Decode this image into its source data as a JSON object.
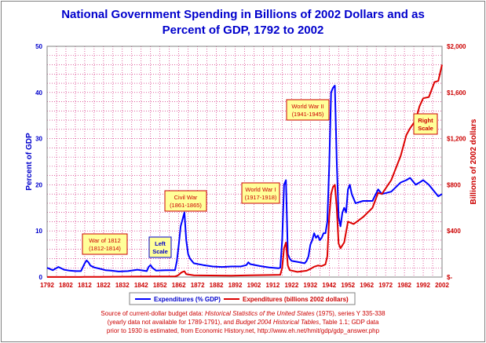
{
  "chart_data": {
    "type": "line",
    "title": "National Government Spending in Billions of 2002 Dollars and as Percent of GDP, 1792 to 2002",
    "title_line1": "National Government Spending in Billions of 2002 Dollars and as",
    "title_line2": "Percent of GDP, 1792 to 2002",
    "ylabel_left": "Percent of GDP",
    "ylabel_right": "Billions of 2002 dollars",
    "xlim": [
      1792,
      2002
    ],
    "ylim_left": [
      0,
      50
    ],
    "ylim_right": [
      0,
      2000
    ],
    "x_ticks": [
      "1792",
      "1802",
      "1812",
      "1822",
      "1832",
      "1842",
      "1852",
      "1862",
      "1872",
      "1882",
      "1892",
      "1902",
      "1912",
      "1922",
      "1932",
      "1942",
      "1952",
      "1962",
      "1972",
      "1982",
      "1992",
      "2002"
    ],
    "y_ticks_left": [
      "0",
      "10",
      "20",
      "30",
      "40",
      "50"
    ],
    "y_ticks_right": [
      "$-",
      "$400",
      "$800",
      "$1,200",
      "$1,600",
      "$2,000"
    ],
    "grid": true,
    "legend_position": "bottom",
    "colors": {
      "left_series": "#0000ff",
      "right_series": "#dd0000",
      "grid": "#cc0066",
      "annotation_border": "#cc0000",
      "annotation_fill": "#ffff99"
    },
    "series": [
      {
        "name": "Expenditures (% GDP)",
        "axis": "left",
        "x": [
          1792,
          1795,
          1798,
          1801,
          1804,
          1807,
          1810,
          1812,
          1813,
          1814,
          1815,
          1817,
          1820,
          1823,
          1826,
          1830,
          1835,
          1840,
          1845,
          1846,
          1847,
          1848,
          1850,
          1855,
          1860,
          1861,
          1862,
          1863,
          1864,
          1865,
          1866,
          1867,
          1868,
          1870,
          1875,
          1880,
          1885,
          1890,
          1895,
          1898,
          1899,
          1900,
          1905,
          1910,
          1915,
          1916,
          1917,
          1918,
          1919,
          1920,
          1921,
          1922,
          1925,
          1929,
          1930,
          1931,
          1932,
          1933,
          1934,
          1935,
          1936,
          1937,
          1938,
          1939,
          1940,
          1941,
          1942,
          1943,
          1944,
          1945,
          1946,
          1947,
          1948,
          1949,
          1950,
          1951,
          1952,
          1953,
          1954,
          1955,
          1956,
          1960,
          1965,
          1968,
          1970,
          1975,
          1980,
          1983,
          1985,
          1988,
          1990,
          1992,
          1995,
          1998,
          2000,
          2002
        ],
        "values": [
          2,
          1.5,
          2.2,
          1.6,
          1.4,
          1.3,
          1.3,
          3,
          3.6,
          3.2,
          2.5,
          2.1,
          1.8,
          1.5,
          1.4,
          1.2,
          1.3,
          1.6,
          1.3,
          2.2,
          2.6,
          2,
          1.4,
          1.5,
          1.5,
          3.5,
          7,
          11,
          12.5,
          14,
          8,
          5,
          4,
          3,
          2.6,
          2.3,
          2.2,
          2.3,
          2.3,
          2.6,
          3.2,
          2.8,
          2.4,
          2.1,
          1.9,
          2,
          8,
          20,
          21,
          5,
          4,
          3.5,
          3.3,
          3,
          3.5,
          4.5,
          7,
          8,
          9.5,
          8.5,
          9,
          8,
          8.5,
          9.5,
          9.5,
          12,
          24,
          40,
          41,
          41.5,
          25,
          13,
          11,
          14,
          15,
          14,
          19,
          20,
          18,
          17,
          16,
          16.5,
          16.5,
          19,
          18,
          18.5,
          20.5,
          21,
          21.5,
          20,
          20.5,
          21,
          20,
          18.5,
          17.5,
          18
        ],
        "color": "#0000ff"
      },
      {
        "name": "Expenditures (billions 2002 dollars)",
        "axis": "right",
        "x": [
          1792,
          1810,
          1812,
          1815,
          1820,
          1840,
          1860,
          1861,
          1862,
          1863,
          1864,
          1865,
          1866,
          1870,
          1890,
          1900,
          1910,
          1916,
          1917,
          1918,
          1919,
          1920,
          1921,
          1925,
          1930,
          1932,
          1934,
          1936,
          1938,
          1940,
          1941,
          1942,
          1943,
          1944,
          1945,
          1946,
          1947,
          1948,
          1950,
          1952,
          1955,
          1960,
          1965,
          1968,
          1970,
          1975,
          1980,
          1983,
          1985,
          1988,
          1990,
          1992,
          1995,
          1998,
          2000,
          2002
        ],
        "values": [
          0.5,
          1,
          2,
          2,
          2,
          4,
          6,
          10,
          20,
          35,
          45,
          50,
          25,
          15,
          12,
          15,
          18,
          20,
          80,
          250,
          300,
          100,
          60,
          45,
          55,
          70,
          90,
          100,
          95,
          110,
          180,
          520,
          720,
          780,
          800,
          600,
          290,
          250,
          300,
          480,
          460,
          520,
          600,
          730,
          720,
          840,
          1050,
          1230,
          1290,
          1360,
          1480,
          1550,
          1560,
          1690,
          1700,
          1840
        ],
        "color": "#dd0000"
      }
    ],
    "legend": [
      "Expenditures (% GDP)",
      "Expenditures (billions 2002 dollars)"
    ],
    "annotations": [
      {
        "line1": "War of 1812",
        "line2": "(1812-1814)"
      },
      {
        "line1": "Left",
        "line2": "Scale"
      },
      {
        "line1": "Civil War",
        "line2": "(1861-1865)"
      },
      {
        "line1": "World War I",
        "line2": "(1917-1918)"
      },
      {
        "line1": "World War II",
        "line2": "(1941-1945)"
      },
      {
        "line1": "Right",
        "line2": "Scale"
      }
    ]
  },
  "source_note": {
    "line1_a": "Source of current-dollar budget data: ",
    "line1_b": "Historical Statistics of the United States",
    "line1_c": " (1975), series Y 335-338",
    "line2_a": "(yearly data not available for 1789-1791), and ",
    "line2_b": "Budget 2004 Historical Tables",
    "line2_c": ", Table 1.1; GDP data",
    "line3": "prior to 1930 is estimated, from  Economic History.net, http://www.eh.net/hmit/gdp/gdp_answer.php"
  }
}
